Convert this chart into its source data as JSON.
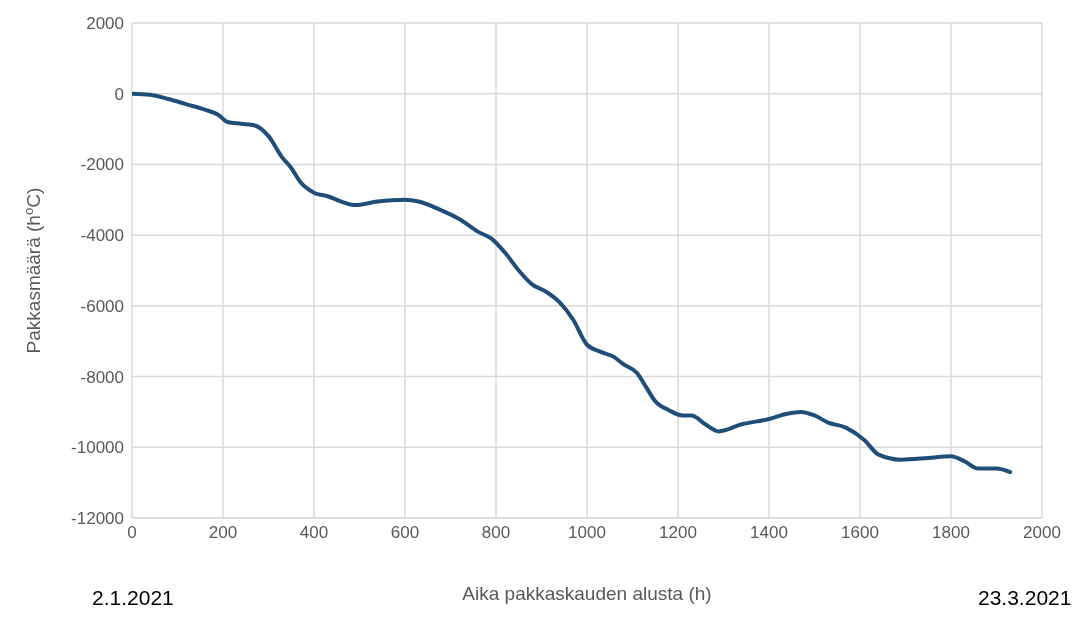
{
  "chart_data": {
    "type": "line",
    "xlabel": "Aika pakkaskauden alusta (h)",
    "ylabel": "Pakkasmäärä (h$^{o}$C)",
    "annotations": [
      "2.1.2021",
      "23.3.2021"
    ],
    "x": [
      0,
      40,
      80,
      120,
      160,
      190,
      210,
      240,
      270,
      300,
      330,
      350,
      370,
      400,
      430,
      460,
      490,
      540,
      600,
      630,
      680,
      720,
      760,
      790,
      820,
      850,
      880,
      910,
      940,
      970,
      1000,
      1030,
      1060,
      1080,
      1110,
      1130,
      1150,
      1180,
      1210,
      1230,
      1260,
      1290,
      1340,
      1400,
      1440,
      1470,
      1500,
      1530,
      1570,
      1610,
      1640,
      1690,
      1750,
      1800,
      1830,
      1860,
      1900,
      1930
    ],
    "series": [
      {
        "color": "#1f4e79",
        "values": [
          0,
          -30,
          -150,
          -300,
          -450,
          -600,
          -800,
          -850,
          -900,
          -1200,
          -1800,
          -2100,
          -2500,
          -2800,
          -2900,
          -3050,
          -3150,
          -3050,
          -3000,
          -3050,
          -3300,
          -3550,
          -3900,
          -4100,
          -4500,
          -5000,
          -5400,
          -5600,
          -5900,
          -6400,
          -7100,
          -7300,
          -7450,
          -7650,
          -7900,
          -8300,
          -8700,
          -8950,
          -9100,
          -9100,
          -9350,
          -9550,
          -9350,
          -9200,
          -9050,
          -9000,
          -9100,
          -9300,
          -9450,
          -9800,
          -10200,
          -10350,
          -10300,
          -10250,
          -10400,
          -10600,
          -10600,
          -10700
        ]
      }
    ],
    "xlim": [
      0,
      2000
    ],
    "xticks": [
      0,
      200,
      400,
      600,
      800,
      1000,
      1200,
      1400,
      1600,
      1800,
      2000
    ],
    "ylim": [
      -12000,
      2000
    ],
    "yticks": [
      -12000,
      -10000,
      -8000,
      -6000,
      -4000,
      -2000,
      0,
      2000
    ],
    "grid": true,
    "marker": "none",
    "line_style": "solid"
  }
}
